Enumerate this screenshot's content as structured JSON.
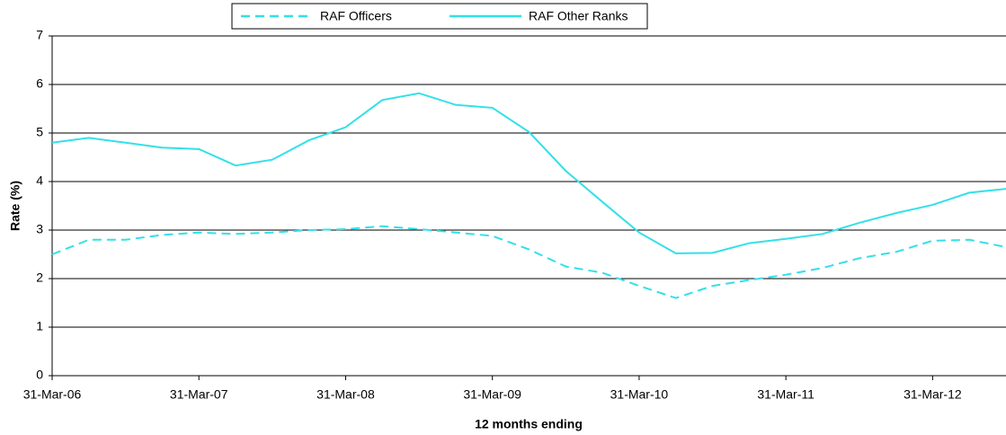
{
  "chart_data": {
    "type": "line",
    "categories": [
      "31-Mar-06",
      null,
      null,
      null,
      "31-Mar-07",
      null,
      null,
      null,
      "31-Mar-08",
      null,
      null,
      null,
      "31-Mar-09",
      null,
      null,
      null,
      "31-Mar-10",
      null,
      null,
      null,
      "31-Mar-11",
      null,
      null,
      null,
      "31-Mar-12",
      null,
      null
    ],
    "series": [
      {
        "name": "RAF Officers",
        "color": "#33e0e8",
        "dash": true,
        "values": [
          2.5,
          2.8,
          2.8,
          2.9,
          2.95,
          2.92,
          2.95,
          3.0,
          3.02,
          3.08,
          3.02,
          2.95,
          2.88,
          2.6,
          2.25,
          2.12,
          1.85,
          1.6,
          1.85,
          1.97,
          2.08,
          2.22,
          2.42,
          2.55,
          2.78,
          2.8,
          2.65
        ]
      },
      {
        "name": "RAF Other Ranks",
        "color": "#33e0e8",
        "dash": false,
        "values": [
          4.8,
          4.9,
          4.8,
          4.7,
          4.67,
          4.33,
          4.45,
          4.85,
          5.12,
          5.68,
          5.82,
          5.58,
          5.52,
          5.02,
          4.22,
          3.58,
          2.95,
          2.52,
          2.53,
          2.73,
          2.82,
          2.92,
          3.15,
          3.35,
          3.52,
          3.77,
          3.85
        ]
      }
    ],
    "ylabel": "Rate (%)",
    "xlabel": "12 months ending",
    "ylim": [
      0,
      7
    ],
    "yticks": [
      0,
      1,
      2,
      3,
      4,
      5,
      6,
      7
    ],
    "grid": true
  }
}
